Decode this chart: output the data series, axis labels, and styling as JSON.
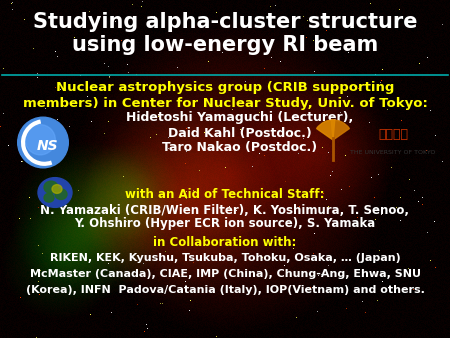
{
  "title_line1": "Studying alpha-cluster structure",
  "title_line2": "using low-energy RI beam",
  "title_color": "#ffffff",
  "title_fontsize": 15,
  "separator_color": "#00aaaa",
  "yellow_color": "#ffff00",
  "white_color": "#ffffff",
  "group_line1": "Nuclear astrophysics group (CRIB supporting",
  "group_line2": "members) in Center for Nuclear Study, Univ. of Tokyo:",
  "group_fontsize": 9.5,
  "member1": "Hidetoshi Yamaguchi (Lecturer),",
  "member2": "Daid Kahl (Postdoc.)",
  "member3": "Taro Nakao (Postdoc.)",
  "member_fontsize": 9.0,
  "staff_header": "with an Aid of Technical Staff:",
  "staff_line1": "N. Yamazaki (CRIB/Wien Filter), K. Yoshimura, T. Senoo,",
  "staff_line2": "Y. Ohshiro (Hyper ECR ion source), S. Yamaka",
  "staff_fontsize": 8.5,
  "collab_header": "in Collaboration with:",
  "collab_line1": "RIKEN, KEK, Kyushu, Tsukuba, Tohoku, Osaka, … (Japan)",
  "collab_line2": "McMaster (Canada), CIAE, IMP (China), Chung-Ang, Ehwa, SNU",
  "collab_line3": "(Korea), INFN  Padova/Catania (Italy), IOP(Vietnam) and others.",
  "collab_fontsize": 8.0,
  "bg_color": "#050505",
  "figw": 4.5,
  "figh": 3.38,
  "dpi": 100
}
